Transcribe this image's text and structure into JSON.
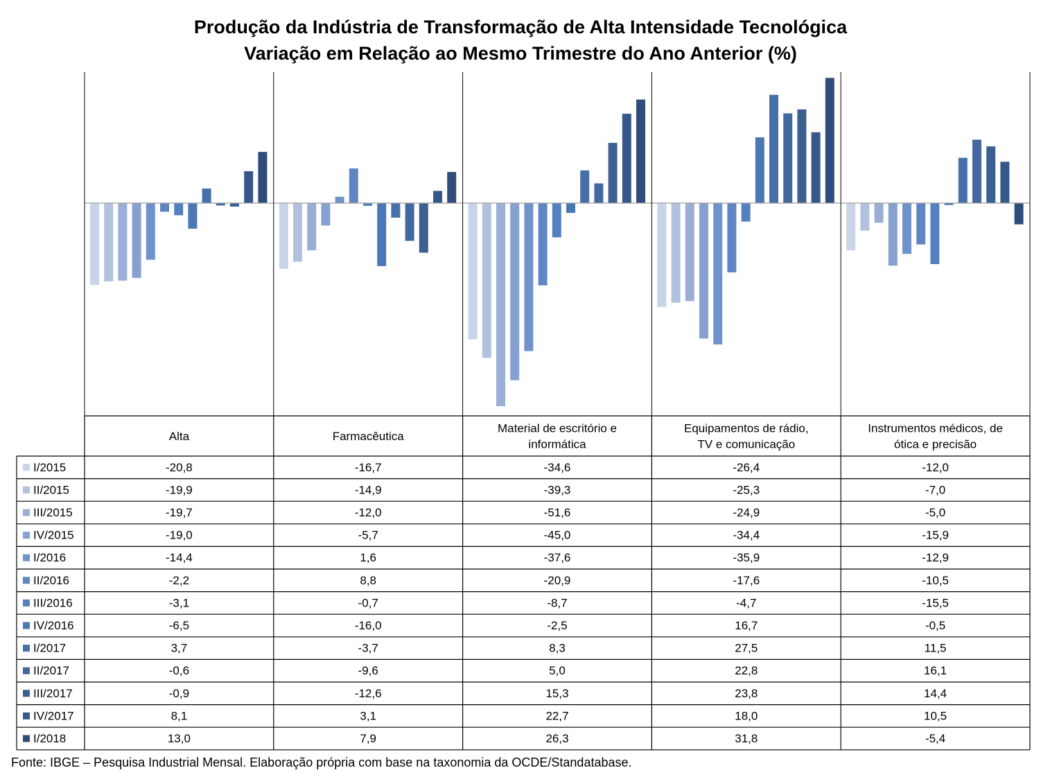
{
  "title": "Produção da Indústria de Transformação de Alta Intensidade Tecnológica",
  "subtitle": "Variação em Relação ao Mesmo Trimestre do Ano Anterior (%)",
  "source": "Fonte: IBGE – Pesquisa Industrial Mensal. Elaboração própria com base na taxonomia da OCDE/Standatabase.",
  "chart_data": {
    "type": "bar",
    "categories": [
      "Alta",
      "Farmacêutica",
      "Material de escritório e informática",
      "Equipamentos de rádio, TV e comunicação",
      "Instrumentos médicos, de ótica e precisão"
    ],
    "series": [
      {
        "name": "I/2015",
        "color": "#c9d4e8",
        "values": [
          -20.8,
          -16.7,
          -34.6,
          -26.4,
          -12.0
        ]
      },
      {
        "name": "II/2015",
        "color": "#b1c1de",
        "values": [
          -19.9,
          -14.9,
          -39.3,
          -25.3,
          -7.0
        ]
      },
      {
        "name": "III/2015",
        "color": "#9baed5",
        "values": [
          -19.7,
          -12.0,
          -51.6,
          -24.9,
          -5.0
        ]
      },
      {
        "name": "IV/2015",
        "color": "#86a0d0",
        "values": [
          -19.0,
          -5.7,
          -45.0,
          -34.4,
          -15.9
        ]
      },
      {
        "name": "I/2016",
        "color": "#7092ca",
        "values": [
          -14.4,
          1.6,
          -37.6,
          -35.9,
          -12.9
        ]
      },
      {
        "name": "II/2016",
        "color": "#5f86c3",
        "values": [
          -2.2,
          8.8,
          -20.9,
          -17.6,
          -10.5
        ]
      },
      {
        "name": "III/2016",
        "color": "#5580bf",
        "values": [
          -3.1,
          -0.7,
          -8.7,
          -4.7,
          -15.5
        ]
      },
      {
        "name": "IV/2016",
        "color": "#4c77b5",
        "values": [
          -6.5,
          -16.0,
          -2.5,
          16.7,
          -0.5
        ]
      },
      {
        "name": "I/2017",
        "color": "#476fa9",
        "values": [
          3.7,
          -3.7,
          8.3,
          27.5,
          11.5
        ]
      },
      {
        "name": "II/2017",
        "color": "#42689f",
        "values": [
          -0.6,
          -9.6,
          5.0,
          22.8,
          16.1
        ]
      },
      {
        "name": "III/2017",
        "color": "#3d6092",
        "values": [
          -0.9,
          -12.6,
          15.3,
          23.8,
          14.4
        ]
      },
      {
        "name": "IV/2017",
        "color": "#36578a",
        "values": [
          8.1,
          3.1,
          22.7,
          18.0,
          10.5
        ]
      },
      {
        "name": "I/2018",
        "color": "#2f4c7b",
        "values": [
          13.0,
          7.9,
          26.3,
          31.8,
          -5.4
        ]
      }
    ],
    "value_labels": [
      [
        "-20,8",
        "-16,7",
        "-34,6",
        "-26,4",
        "-12,0"
      ],
      [
        "-19,9",
        "-14,9",
        "-39,3",
        "-25,3",
        "-7,0"
      ],
      [
        "-19,7",
        "-12,0",
        "-51,6",
        "-24,9",
        "-5,0"
      ],
      [
        "-19,0",
        "-5,7",
        "-45,0",
        "-34,4",
        "-15,9"
      ],
      [
        "-14,4",
        "1,6",
        "-37,6",
        "-35,9",
        "-12,9"
      ],
      [
        "-2,2",
        "8,8",
        "-20,9",
        "-17,6",
        "-10,5"
      ],
      [
        "-3,1",
        "-0,7",
        "-8,7",
        "-4,7",
        "-15,5"
      ],
      [
        "-6,5",
        "-16,0",
        "-2,5",
        "16,7",
        "-0,5"
      ],
      [
        "3,7",
        "-3,7",
        "8,3",
        "27,5",
        "11,5"
      ],
      [
        "-0,6",
        "-9,6",
        "5,0",
        "22,8",
        "16,1"
      ],
      [
        "-0,9",
        "-12,6",
        "15,3",
        "23,8",
        "14,4"
      ],
      [
        "8,1",
        "3,1",
        "22,7",
        "18,0",
        "10,5"
      ],
      [
        "13,0",
        "7,9",
        "26,3",
        "31,8",
        "-5,4"
      ]
    ],
    "ylim": [
      -54,
      33
    ],
    "legend": "data-table"
  }
}
